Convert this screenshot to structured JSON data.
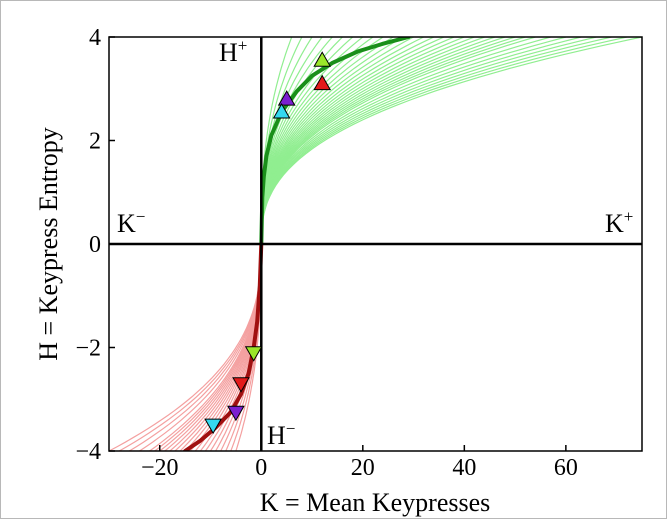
{
  "chart_data": {
    "type": "line",
    "xlabel": "K = Mean Keypresses",
    "ylabel": "H = Keypress Entropy",
    "xlim": [
      -30,
      75
    ],
    "ylim": [
      -4,
      4
    ],
    "xticks": [
      -20,
      0,
      20,
      40,
      60
    ],
    "xtick_labels": [
      "−20",
      "0",
      "20",
      "40",
      "60"
    ],
    "yticks": [
      -4,
      -2,
      0,
      2,
      4
    ],
    "ytick_labels": [
      "−4",
      "−2",
      "0",
      "2",
      "4"
    ],
    "grid": false,
    "quadrant_labels": {
      "k_minus": {
        "base": "K",
        "sup": "−"
      },
      "k_plus": {
        "base": "K",
        "sup": "+"
      },
      "h_plus": {
        "base": "H",
        "sup": "+"
      },
      "h_minus": {
        "base": "H",
        "sup": "−"
      }
    },
    "colors": {
      "positive_light": "#90ee90",
      "positive_mean": "#1a8f1a",
      "negative_light": "#f4a0a0",
      "negative_mean": "#a01010",
      "marker_lime": "#9ae62a",
      "marker_red": "#e31b1b",
      "marker_purple": "#7b1fd0",
      "marker_cyan": "#35d9f0"
    },
    "series": [
      {
        "role": "positive-mean",
        "color": "positive_mean",
        "x": [
          0,
          0.2,
          0.5,
          1,
          2,
          4,
          7,
          10,
          14,
          19,
          24,
          29
        ],
        "y": [
          0,
          0.9,
          1.3,
          1.7,
          2.1,
          2.55,
          2.95,
          3.25,
          3.5,
          3.72,
          3.87,
          4.0
        ]
      },
      {
        "role": "negative-mean",
        "color": "negative_mean",
        "x": [
          0,
          -0.3,
          -0.8,
          -1.5,
          -2.5,
          -4,
          -6,
          -9,
          -12,
          -15
        ],
        "y": [
          0,
          -0.8,
          -1.5,
          -2.0,
          -2.5,
          -2.9,
          -3.25,
          -3.55,
          -3.8,
          -4.0
        ]
      }
    ],
    "positive_band_end_k": [
      6,
      8,
      10,
      12,
      14,
      16,
      18,
      20,
      22,
      24,
      26,
      28,
      30,
      32,
      34,
      36,
      38,
      40,
      42,
      44,
      46,
      48,
      50,
      52,
      54,
      57,
      60,
      63,
      66,
      69,
      72,
      75
    ],
    "negative_band_end_k": [
      -5,
      -6,
      -7,
      -8,
      -9,
      -10,
      -11,
      -12,
      -13,
      -14,
      -15,
      -16,
      -17,
      -18,
      -19,
      -20,
      -21,
      -22,
      -24,
      -26,
      -28,
      -30
    ],
    "markers": [
      {
        "k": 12,
        "h": 3.55,
        "direction": "up",
        "color": "marker_lime"
      },
      {
        "k": 12,
        "h": 3.1,
        "direction": "up",
        "color": "marker_red"
      },
      {
        "k": 5,
        "h": 2.8,
        "direction": "up",
        "color": "marker_purple"
      },
      {
        "k": 4,
        "h": 2.55,
        "direction": "up",
        "color": "marker_cyan"
      },
      {
        "k": -1.5,
        "h": -2.1,
        "direction": "down",
        "color": "marker_lime"
      },
      {
        "k": -4,
        "h": -2.7,
        "direction": "down",
        "color": "marker_red"
      },
      {
        "k": -5,
        "h": -3.25,
        "direction": "down",
        "color": "marker_purple"
      },
      {
        "k": -9.5,
        "h": -3.5,
        "direction": "down",
        "color": "marker_cyan"
      }
    ]
  }
}
